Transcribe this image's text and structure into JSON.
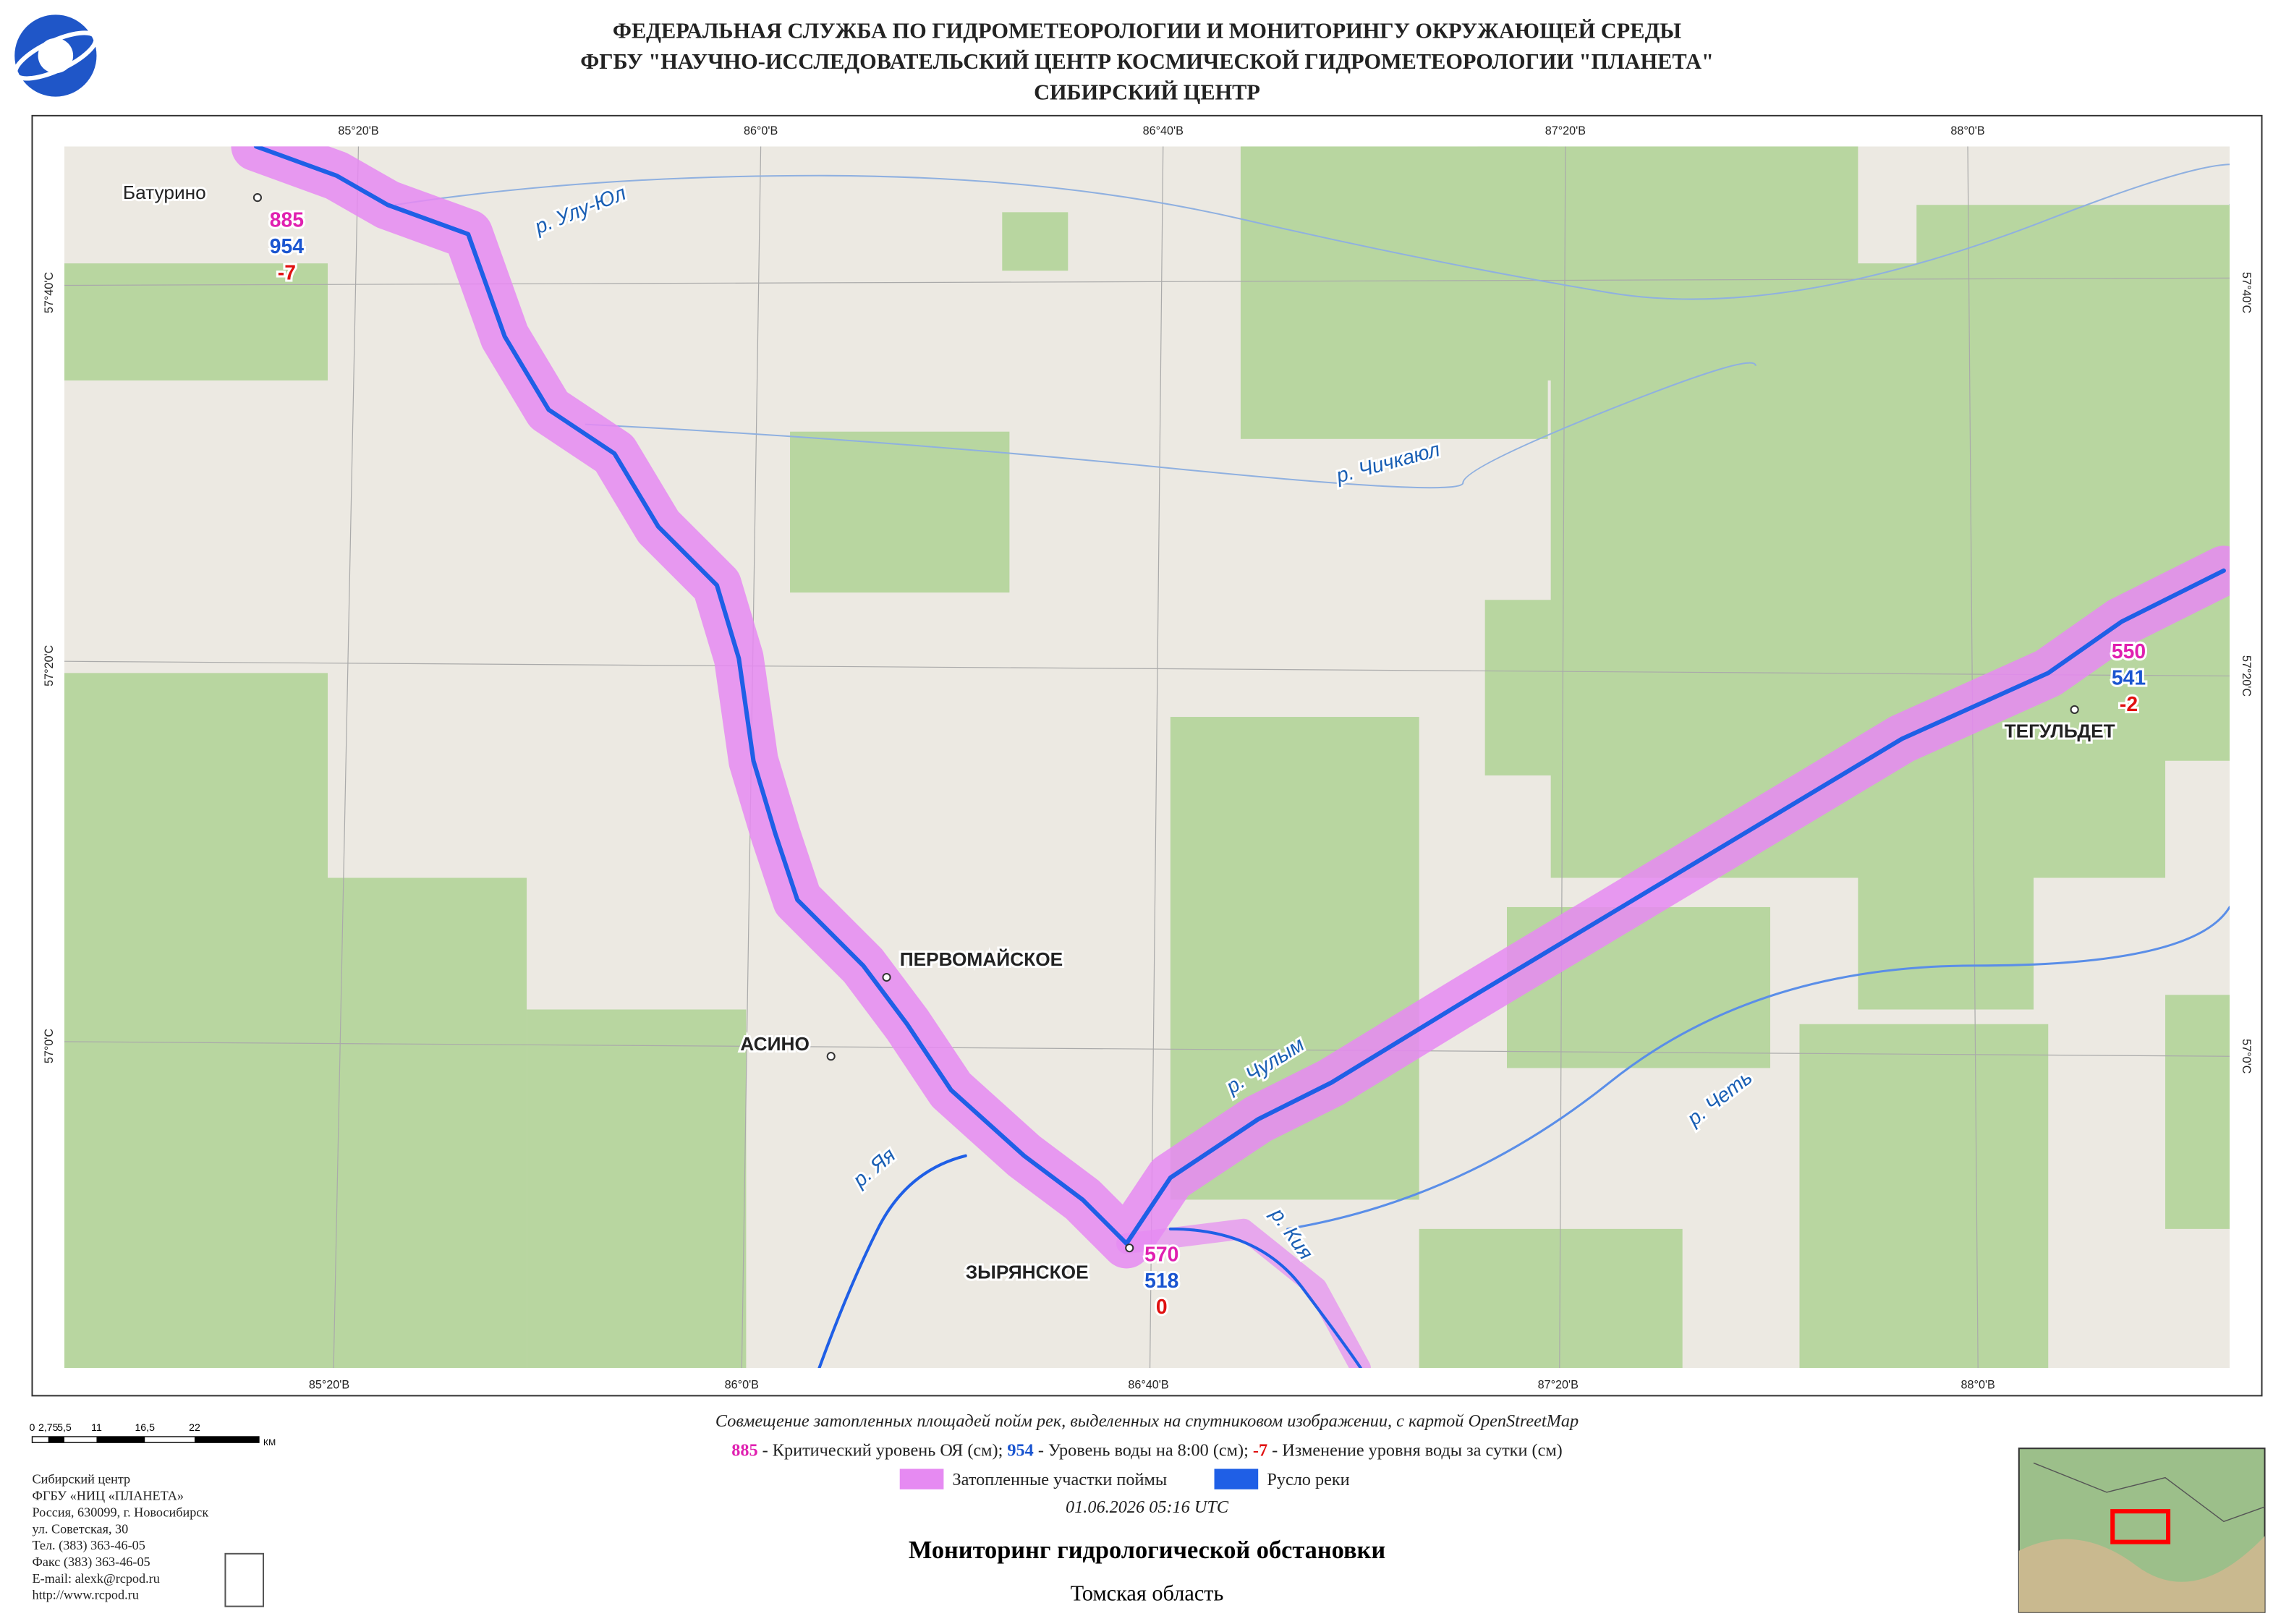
{
  "header": {
    "lines": [
      "ФЕДЕРАЛЬНАЯ СЛУЖБА ПО ГИДРОМЕТЕОРОЛОГИИ И МОНИТОРИНГУ ОКРУЖАЮЩЕЙ СРЕДЫ",
      "ФГБУ \"НАУЧНО-ИССЛЕДОВАТЕЛЬСКИЙ ЦЕНТР КОСМИЧЕСКОЙ ГИДРОМЕТЕОРОЛОГИИ \"ПЛАНЕТА\"",
      "СИБИРСКИЙ ЦЕНТР"
    ]
  },
  "map": {
    "top_lon": [
      "85°20'В",
      "86°0'В",
      "86°40'В",
      "87°20'В",
      "88°0'В"
    ],
    "bottom_lon": [
      "85°20'В",
      "86°0'В",
      "86°40'В",
      "87°20'В",
      "88°0'В"
    ],
    "left_lat": [
      "57°40'С",
      "57°20'С",
      "57°0'С"
    ],
    "right_lat": [
      "57°40'С",
      "57°20'С",
      "57°0'С"
    ],
    "rivers": [
      "р. Улу-Юл",
      "р. Чичкаюл",
      "р. Чулым",
      "р. Яя",
      "р. Кия",
      "р. Четь"
    ],
    "towns": [
      "Батурино",
      "ПЕРВОМАЙСКОЕ",
      "АСИНО",
      "ЗЫРЯНСКОЕ",
      "ТЕГУЛЬДЕТ"
    ],
    "stations": [
      {
        "critical": 885,
        "level": 954,
        "change": -7
      },
      {
        "critical": 570,
        "level": 518,
        "change": 0
      },
      {
        "critical": 550,
        "level": 541,
        "change": -2
      }
    ]
  },
  "scale": {
    "labels": [
      "0",
      "2,75",
      "5,5",
      "11",
      "16,5",
      "22"
    ],
    "unit": "КМ"
  },
  "legend": {
    "caption": "Совмещение затопленных площадей пойм рек, выделенных на спутниковом изображении, с картой OpenStreetMap",
    "levels": [
      {
        "sample": 885,
        "text": "- Критический уровень ОЯ (см);"
      },
      {
        "sample": 954,
        "text": "- Уровень воды на 8:00 (см);"
      },
      {
        "sample": -7,
        "text": "- Изменение уровня воды за сутки (см)"
      }
    ],
    "flooded": "Затопленные участки поймы",
    "channel": "Русло реки",
    "date": "01.06.2026  05:16 UTC"
  },
  "footer": {
    "title": "Мониторинг гидрологической обстановки",
    "region": "Томская область",
    "contacts": [
      "Сибирский центр",
      "ФГБУ «НИЦ «ПЛАНЕТА»",
      "Россия, 630099, г. Новосибирск",
      "ул. Советская, 30",
      "Тел. (383) 363-46-05",
      "Факс (383) 363-46-05",
      "E-mail: alexk@rcpod.ru",
      "http://www.rcpod.ru"
    ]
  }
}
